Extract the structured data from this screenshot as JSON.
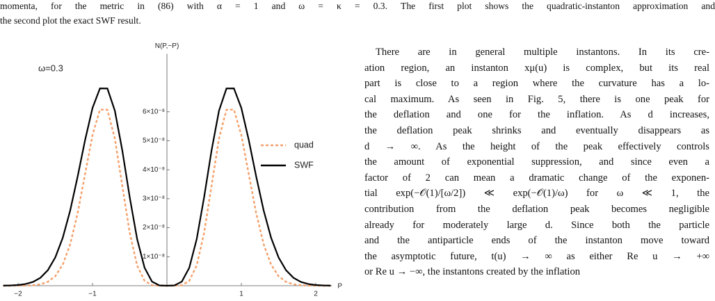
{
  "caption": {
    "lines": [
      "momenta, for the metric in (86) with α = 1 and ω = κ = 0.3. The first plot shows the quadratic-instanton approximation and",
      "the second plot the exact SWF result."
    ]
  },
  "chart_data": {
    "type": "line",
    "y_axis_label": "N(P,−P)",
    "x_axis_label": "P",
    "annotation": "ω=0.3",
    "x": [
      -2.2,
      -2.1,
      -2.0,
      -1.9,
      -1.8,
      -1.7,
      -1.6,
      -1.5,
      -1.4,
      -1.3,
      -1.2,
      -1.1,
      -1.0,
      -0.9,
      -0.8,
      -0.7,
      -0.6,
      -0.5,
      -0.4,
      -0.3,
      -0.2,
      -0.1,
      0,
      0.1,
      0.2,
      0.3,
      0.4,
      0.5,
      0.6,
      0.7,
      0.8,
      0.9,
      1.0,
      1.1,
      1.2,
      1.3,
      1.4,
      1.5,
      1.6,
      1.7,
      1.8,
      1.9,
      2.0,
      2.1,
      2.2
    ],
    "series": [
      {
        "name": "quad",
        "color": "#f4a06a",
        "line_style": "dashed",
        "values": [
          1e-12,
          3e-12,
          1e-11,
          5e-11,
          1.6e-10,
          4.9e-10,
          1.34e-09,
          3.29e-09,
          7.26e-09,
          1.428e-08,
          2.495e-08,
          3.847e-08,
          5.194e-08,
          6.075e-08,
          6.07e-08,
          5.078e-08,
          3.456e-08,
          1.827e-08,
          6.96e-09,
          1.66e-09,
          1.8e-10,
          3e-12,
          0,
          3e-12,
          1.8e-10,
          1.66e-09,
          6.96e-09,
          1.827e-08,
          3.456e-08,
          5.078e-08,
          6.07e-08,
          6.075e-08,
          5.194e-08,
          3.847e-08,
          2.495e-08,
          1.428e-08,
          7.26e-09,
          3.29e-09,
          1.34e-09,
          4.9e-10,
          1.6e-10,
          5e-11,
          1e-11,
          3e-12,
          1e-12
        ]
      },
      {
        "name": "SWF",
        "color": "#000000",
        "line_style": "solid",
        "values": [
          3.5e-11,
          9.5e-11,
          2.4e-10,
          5.8e-10,
          1.31e-09,
          2.74e-09,
          5.35e-09,
          9.76e-09,
          1.652e-08,
          2.593e-08,
          3.761e-08,
          5.02e-08,
          6.131e-08,
          6.807e-08,
          6.804e-08,
          6.04e-08,
          4.673e-08,
          3.055e-08,
          1.606e-08,
          6.17e-09,
          1.4e-09,
          9.5e-11,
          0,
          9.5e-11,
          1.4e-09,
          6.17e-09,
          1.606e-08,
          3.055e-08,
          4.673e-08,
          6.04e-08,
          6.804e-08,
          6.807e-08,
          6.131e-08,
          5.02e-08,
          3.761e-08,
          2.593e-08,
          1.652e-08,
          9.76e-09,
          5.35e-09,
          2.74e-09,
          1.31e-09,
          5.8e-10,
          2.4e-10,
          9.5e-11,
          3.5e-11
        ]
      }
    ],
    "xlim": [
      -2.2,
      2.2
    ],
    "xticks": [
      {
        "value": -2,
        "label": "−2"
      },
      {
        "value": -1,
        "label": "−1"
      },
      1,
      2
    ],
    "ylim": [
      0,
      8e-08
    ],
    "yticks": [
      {
        "value": 1e-08,
        "label": "1×10⁻⁸"
      },
      {
        "value": 2e-08,
        "label": "2×10⁻⁸"
      },
      {
        "value": 3e-08,
        "label": "3×10⁻⁸"
      },
      {
        "value": 4e-08,
        "label": "4×10⁻⁸"
      },
      {
        "value": 5e-08,
        "label": "5×10⁻⁸"
      },
      {
        "value": 6e-08,
        "label": "6×10⁻⁸"
      }
    ],
    "grid": false,
    "legend": "right"
  },
  "body": {
    "lines": [
      "There are in general multiple instantons. In its cre-",
      "ation region, an instanton xμ(u) is complex, but its real",
      "part is close to a region where the curvature has a lo-",
      "cal maximum. As seen in Fig. 5, there is one peak for",
      "the deflation and one for the inflation. As d increases,",
      "the deflation peak shrinks and eventually disappears as",
      "d → ∞. As the height of the peak effectively controls",
      "the amount of exponential suppression, and since even a",
      "factor of 2 can mean a dramatic change of the exponen-",
      "tial exp(−𝒪(1)/[ω/2]) ≪ exp(−𝒪(1)/ω) for ω ≪ 1, the",
      "contribution from the deflation peak becomes negligible",
      "already for moderately large d. Since both the particle",
      "and the antiparticle ends of the instanton move toward",
      "the asymptotic future, t(u) → ∞ as either Re u → +∞",
      "or Re u → −∞, the instantons created by the inflation"
    ]
  }
}
